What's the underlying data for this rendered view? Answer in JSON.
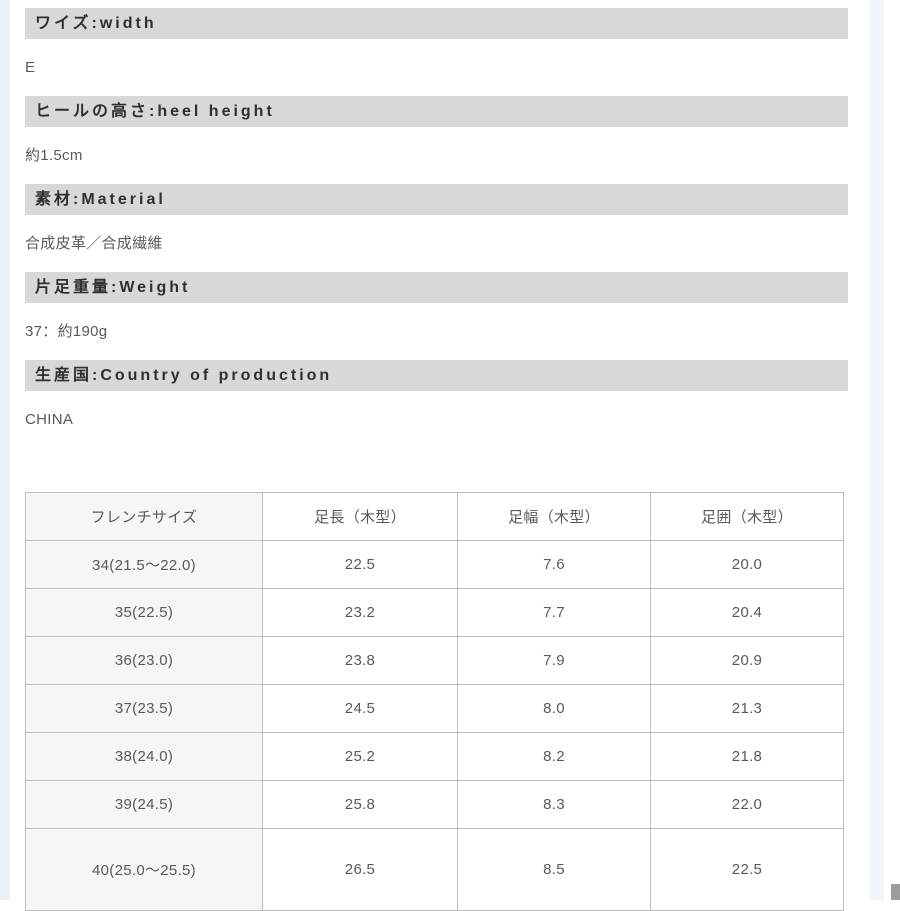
{
  "colors": {
    "label_bar_bg": "#d8d8d8",
    "label_bar_text": "#2f2f2f",
    "body_text": "#595959",
    "table_border": "#bdbdbd",
    "table_rowhead_bg": "#f6f6f4",
    "page_edge": "#edf1f6"
  },
  "specs": [
    {
      "label": "ワイズ:width",
      "value": "E"
    },
    {
      "label": "ヒールの高さ:heel height",
      "value": "約1.5cm"
    },
    {
      "label": "素材:Material",
      "value": "合成皮革／合成繊維"
    },
    {
      "label": "片足重量:Weight",
      "value": "37：約190g"
    },
    {
      "label": "生産国:Country of production",
      "value": "CHINA"
    }
  ],
  "size_table": {
    "columns": [
      "フレンチサイズ",
      "足長（木型）",
      "足幅（木型）",
      "足囲（木型）"
    ],
    "rows": [
      [
        "34(21.5〜22.0)",
        "22.5",
        "7.6",
        "20.0"
      ],
      [
        "35(22.5)",
        "23.2",
        "7.7",
        "20.4"
      ],
      [
        "36(23.0)",
        "23.8",
        "7.9",
        "20.9"
      ],
      [
        "37(23.5)",
        "24.5",
        "8.0",
        "21.3"
      ],
      [
        "38(24.0)",
        "25.2",
        "8.2",
        "21.8"
      ],
      [
        "39(24.5)",
        "25.8",
        "8.3",
        "22.0"
      ],
      [
        "40(25.0〜25.5)",
        "26.5",
        "8.5",
        "22.5"
      ]
    ]
  }
}
